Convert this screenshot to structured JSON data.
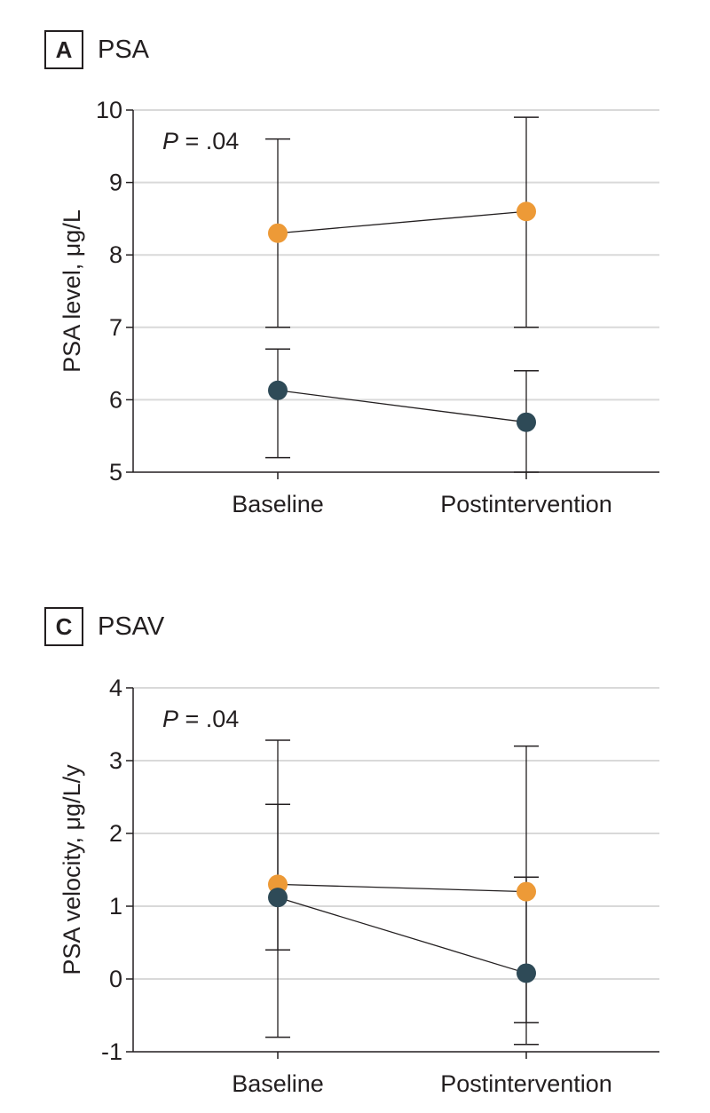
{
  "colors": {
    "series_orange": "#ED9A37",
    "series_dark": "#2E4A57",
    "grid": "#d9d9d9",
    "axis": "#231f20"
  },
  "chart_data": [
    {
      "type": "line",
      "panel_letter": "A",
      "title": "PSA",
      "xlabel": "",
      "ylabel": "PSA level, μg/L",
      "categories": [
        "Baseline",
        "Postintervention"
      ],
      "ylim": [
        5,
        10
      ],
      "yticks": [
        "5",
        "6",
        "7",
        "8",
        "9",
        "10"
      ],
      "grid": true,
      "annotation": {
        "p_italic": "P",
        "p_text": " = .04"
      },
      "series": [
        {
          "color_key": "series_orange",
          "values": [
            8.3,
            8.6
          ],
          "err_low": [
            7.0,
            7.0
          ],
          "err_high": [
            9.6,
            9.9
          ]
        },
        {
          "color_key": "series_dark",
          "values": [
            6.13,
            5.69
          ],
          "err_low": [
            5.2,
            5.0
          ],
          "err_high": [
            6.7,
            6.4
          ]
        }
      ]
    },
    {
      "type": "line",
      "panel_letter": "C",
      "title": "PSAV",
      "xlabel": "",
      "ylabel": "PSA velocity, μg/L/y",
      "categories": [
        "Baseline",
        "Postintervention"
      ],
      "ylim": [
        -1,
        4
      ],
      "yticks": [
        "-1",
        "0",
        "1",
        "2",
        "3",
        "4"
      ],
      "grid": true,
      "annotation": {
        "p_italic": "P",
        "p_text": " = .04"
      },
      "series": [
        {
          "color_key": "series_orange",
          "values": [
            1.3,
            1.2
          ],
          "err_low": [
            -0.8,
            -0.9
          ],
          "err_high": [
            3.28,
            3.2
          ]
        },
        {
          "color_key": "series_dark",
          "values": [
            1.12,
            0.08
          ],
          "err_low": [
            0.4,
            -0.6
          ],
          "err_high": [
            2.4,
            1.4
          ]
        }
      ]
    }
  ]
}
